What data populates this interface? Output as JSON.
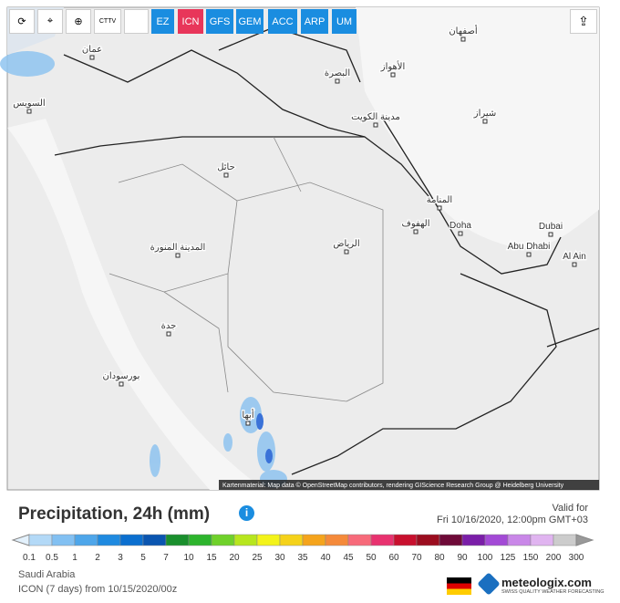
{
  "toolbar": {
    "buttons": [
      "EZ",
      "ICN",
      "GFS",
      "GEM",
      "ACC",
      "ARP",
      "UM"
    ],
    "active": "ICN",
    "ctv_label": "CTTV"
  },
  "map": {
    "cities": [
      "عمان",
      "السويس",
      "البصرة",
      "الأهواز",
      "أصفهان",
      "شيراز",
      "مدينة الكويت",
      "حائل",
      "المنامة",
      "الهفوف",
      "Doha",
      "Dubai",
      "Abu Dhabi",
      "Al Ain",
      "الرياض",
      "المدينة المنورة",
      "جدة",
      "بورسودان",
      "أبها"
    ],
    "attribution": "Kartenmaterial: Map data © OpenStreetMap contributors, rendering GIScience Research Group @ Heidelberg University"
  },
  "header": {
    "title": "Precipitation, 24h (mm)",
    "valid_label": "Valid for",
    "valid_time": "Fri 10/16/2020, 12:00pm GMT+03"
  },
  "legend": {
    "labels": [
      "0.1",
      "0.5",
      "1",
      "2",
      "3",
      "5",
      "7",
      "10",
      "15",
      "20",
      "25",
      "30",
      "35",
      "40",
      "45",
      "50",
      "60",
      "70",
      "80",
      "90",
      "100",
      "125",
      "150",
      "200",
      "300"
    ],
    "colors": [
      "#e3f1fc",
      "#b3d9f7",
      "#82c0f2",
      "#4ea6ea",
      "#1f8ae0",
      "#0b6fcf",
      "#0a55b0",
      "#1a8f2d",
      "#2db42d",
      "#6fd12a",
      "#b7e61e",
      "#f3f31a",
      "#f5d21a",
      "#f5a41c",
      "#f58a3a",
      "#f76a7a",
      "#e8326f",
      "#c8102e",
      "#9b0d1f",
      "#6e0a38",
      "#7a1ea8",
      "#a34ad6",
      "#c987e8",
      "#e0b4f0",
      "#cccccc",
      "#999999"
    ]
  },
  "footer": {
    "region": "Saudi Arabia",
    "model_run": "ICON (7 days) from 10/15/2020/00z",
    "brand": "meteologix.com",
    "tagline": "SWISS QUALITY WEATHER FORECASTING"
  }
}
